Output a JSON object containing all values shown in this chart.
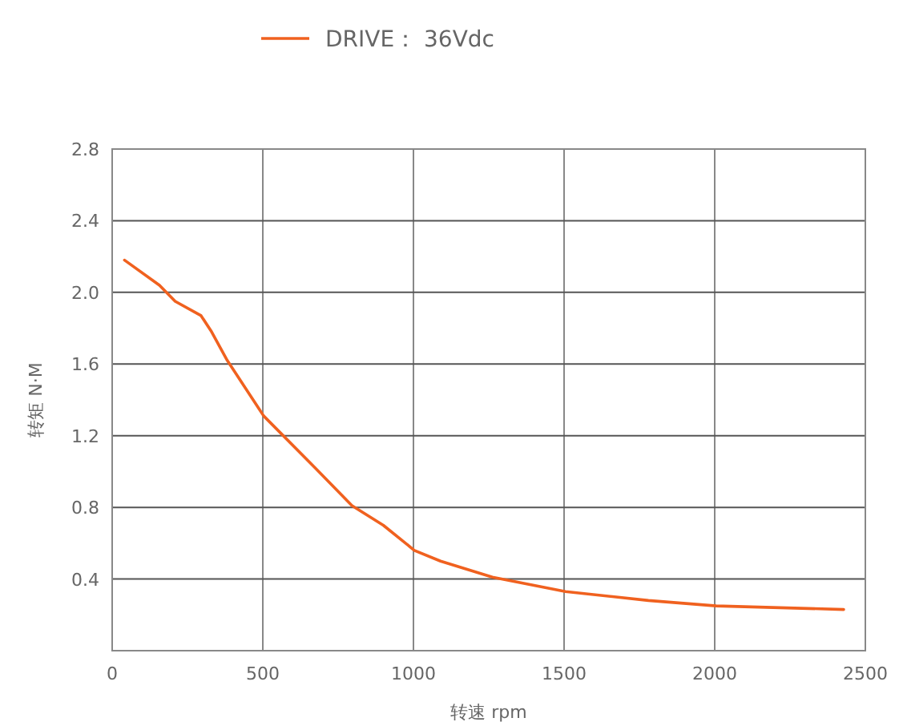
{
  "chart_data": {
    "type": "line",
    "xlabel": "转速 rpm",
    "ylabel": "转矩 N·M",
    "legend": "top",
    "xlim": [
      0,
      2500
    ],
    "xticks": [
      0,
      500,
      1000,
      1500,
      2000,
      2500
    ],
    "ylim": [
      0,
      2.8
    ],
    "yticks": [
      0.4,
      0.8,
      1.2,
      1.6,
      {
        "value": 2.0,
        "label": "2.0"
      },
      2.4,
      2.8
    ],
    "grid": true,
    "marker": "none",
    "line_style": "solid",
    "series": [
      {
        "name": "DRIVE： 36Vdc",
        "color": "#f0611f",
        "x": [
          41,
          157,
          209,
          295,
          330,
          382,
          503,
          674,
          796,
          900,
          1003,
          1090,
          1262,
          1505,
          1780,
          2005,
          2428
        ],
        "values": [
          2.18,
          2.04,
          1.95,
          1.87,
          1.78,
          1.62,
          1.31,
          1.02,
          0.81,
          0.7,
          0.56,
          0.5,
          0.41,
          0.33,
          0.28,
          0.25,
          0.23
        ]
      }
    ]
  }
}
